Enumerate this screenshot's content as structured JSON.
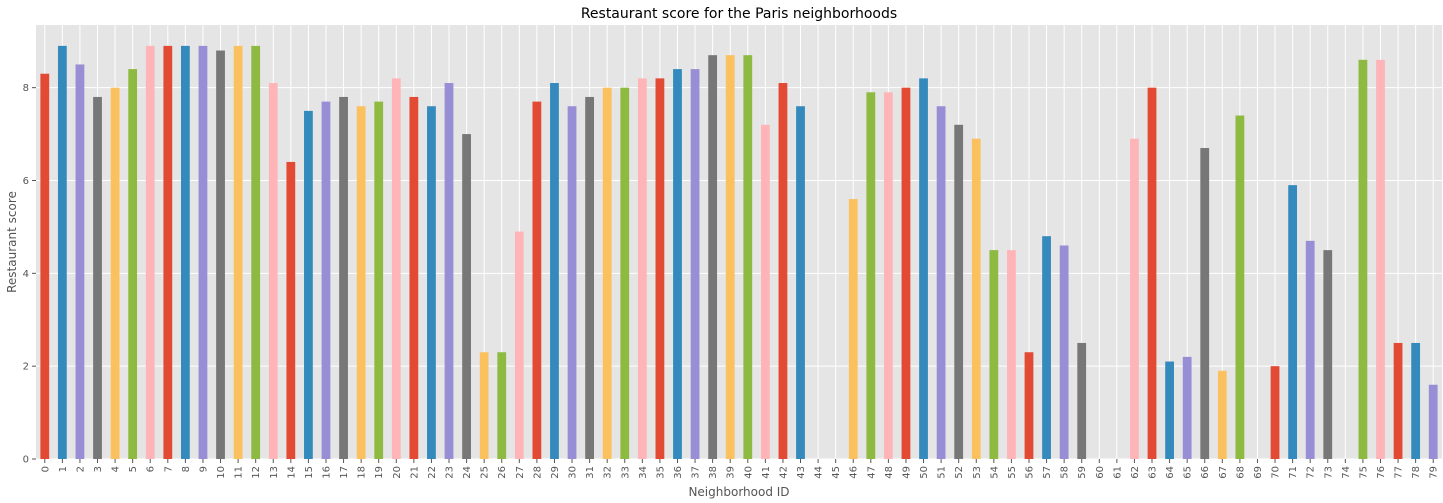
{
  "chart_data": {
    "type": "bar",
    "title": "Restaurant score for the Paris neighborhoods",
    "xlabel": "Neighborhood ID",
    "ylabel": "Restaurant score",
    "ylim": [
      0,
      9.35
    ],
    "yticks": [
      0,
      2,
      4,
      6,
      8
    ],
    "grid": true,
    "legend": "none",
    "categories": [
      "0",
      "1",
      "2",
      "3",
      "4",
      "5",
      "6",
      "7",
      "8",
      "9",
      "10",
      "11",
      "12",
      "13",
      "14",
      "15",
      "16",
      "17",
      "18",
      "19",
      "20",
      "21",
      "22",
      "23",
      "24",
      "25",
      "26",
      "27",
      "28",
      "29",
      "30",
      "31",
      "32",
      "33",
      "34",
      "35",
      "36",
      "37",
      "38",
      "39",
      "40",
      "41",
      "42",
      "43",
      "44",
      "45",
      "46",
      "47",
      "48",
      "49",
      "50",
      "51",
      "52",
      "53",
      "54",
      "55",
      "56",
      "57",
      "58",
      "59",
      "60",
      "61",
      "62",
      "63",
      "64",
      "65",
      "66",
      "67",
      "68",
      "69",
      "70",
      "71",
      "72",
      "73",
      "74",
      "75",
      "76",
      "77",
      "78",
      "79"
    ],
    "values": [
      8.3,
      8.9,
      8.5,
      7.8,
      8.0,
      8.4,
      8.9,
      8.9,
      8.9,
      8.9,
      8.8,
      8.9,
      8.9,
      8.1,
      6.4,
      7.5,
      7.7,
      7.8,
      7.6,
      7.7,
      8.2,
      7.8,
      7.6,
      8.1,
      7.0,
      2.3,
      2.3,
      4.9,
      7.7,
      8.1,
      7.6,
      7.8,
      8.0,
      8.0,
      8.2,
      8.2,
      8.4,
      8.4,
      8.7,
      8.7,
      8.7,
      7.2,
      8.1,
      7.6,
      0,
      0,
      5.6,
      7.9,
      7.9,
      8.0,
      8.2,
      7.6,
      7.2,
      6.9,
      4.5,
      4.5,
      2.3,
      4.8,
      4.6,
      2.5,
      0,
      0,
      6.9,
      8.0,
      2.1,
      2.2,
      6.7,
      1.9,
      7.4,
      0,
      2.0,
      5.9,
      4.7,
      4.5,
      0,
      8.6,
      8.6,
      2.5,
      2.5,
      1.6
    ],
    "colors": [
      "#E24A33",
      "#348ABD",
      "#988ED5",
      "#777777",
      "#FBC15E",
      "#8EBA42",
      "#FFB5B8"
    ]
  }
}
